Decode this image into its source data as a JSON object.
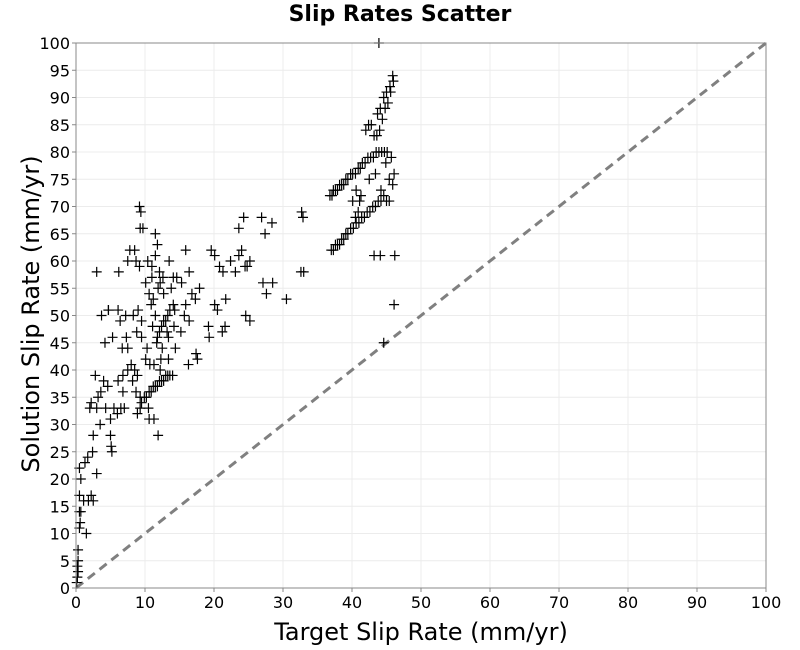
{
  "chart_data": {
    "type": "scatter",
    "title": "Slip Rates Scatter",
    "xlabel": "Target Slip Rate (mm/yr)",
    "ylabel": "Solution Slip Rate (mm/yr)",
    "xlim": [
      0,
      100
    ],
    "ylim": [
      0,
      100
    ],
    "xticks": [
      0,
      10,
      20,
      30,
      40,
      50,
      60,
      70,
      80,
      90,
      100
    ],
    "yticks": [
      0,
      5,
      10,
      15,
      20,
      25,
      30,
      35,
      40,
      45,
      50,
      55,
      60,
      65,
      70,
      75,
      80,
      85,
      90,
      95,
      100
    ],
    "grid": true,
    "marker": "+",
    "marker_color": "#000000",
    "reference_line": {
      "x": [
        0,
        100
      ],
      "y": [
        0,
        100
      ],
      "style": "dashed",
      "color": "#808080"
    },
    "points": [
      [
        0.1,
        1
      ],
      [
        0.2,
        2
      ],
      [
        0.3,
        3
      ],
      [
        0.2,
        4
      ],
      [
        0.3,
        5
      ],
      [
        0.3,
        7
      ],
      [
        0.5,
        11
      ],
      [
        0.6,
        12
      ],
      [
        0.5,
        14
      ],
      [
        0.7,
        14
      ],
      [
        0.5,
        17
      ],
      [
        0.7,
        20
      ],
      [
        0.5,
        22
      ],
      [
        1.1,
        16
      ],
      [
        1.5,
        10
      ],
      [
        1.8,
        16
      ],
      [
        2.2,
        17
      ],
      [
        2.5,
        16
      ],
      [
        1.3,
        23
      ],
      [
        1.7,
        24
      ],
      [
        2.4,
        25
      ],
      [
        3,
        21
      ],
      [
        2.5,
        28
      ],
      [
        2,
        33
      ],
      [
        2.2,
        34
      ],
      [
        3,
        33
      ],
      [
        3.5,
        30
      ],
      [
        3.2,
        35
      ],
      [
        3.6,
        36
      ],
      [
        2.8,
        39
      ],
      [
        4,
        38
      ],
      [
        4.6,
        37
      ],
      [
        4.3,
        33
      ],
      [
        5,
        31
      ],
      [
        5.5,
        33
      ],
      [
        5,
        28
      ],
      [
        6,
        32
      ],
      [
        6.5,
        33
      ],
      [
        7,
        33
      ],
      [
        6.8,
        36
      ],
      [
        5.2,
        25
      ],
      [
        5.1,
        26
      ],
      [
        6.1,
        38
      ],
      [
        6.8,
        39
      ],
      [
        7.5,
        40
      ],
      [
        8,
        41
      ],
      [
        8.5,
        40
      ],
      [
        8.2,
        38
      ],
      [
        8.9,
        39
      ],
      [
        4.2,
        45
      ],
      [
        5.3,
        46
      ],
      [
        6.7,
        44
      ],
      [
        7.3,
        46
      ],
      [
        7.5,
        44
      ],
      [
        6.4,
        49
      ],
      [
        7.2,
        50
      ],
      [
        8.3,
        50
      ],
      [
        9,
        51
      ],
      [
        9.5,
        49
      ],
      [
        4.7,
        51
      ],
      [
        6.1,
        51
      ],
      [
        4.7,
        51
      ],
      [
        3.7,
        50
      ],
      [
        3,
        58
      ],
      [
        6.2,
        58
      ],
      [
        7.5,
        60
      ],
      [
        7.8,
        62
      ],
      [
        8.5,
        62
      ],
      [
        8.7,
        60
      ],
      [
        9.2,
        59
      ],
      [
        9.3,
        66
      ],
      [
        9.2,
        70
      ],
      [
        9.4,
        69
      ],
      [
        9.7,
        66
      ],
      [
        10.1,
        56
      ],
      [
        10.4,
        60
      ],
      [
        11,
        59
      ],
      [
        11.5,
        61
      ],
      [
        11.8,
        63
      ],
      [
        11.5,
        65
      ],
      [
        11.9,
        55
      ],
      [
        12.2,
        56
      ],
      [
        12.1,
        58
      ],
      [
        12.6,
        57
      ],
      [
        11,
        57
      ],
      [
        10.6,
        54
      ],
      [
        10.9,
        52
      ],
      [
        11.2,
        53
      ],
      [
        11.5,
        50
      ],
      [
        11.1,
        48
      ],
      [
        8.8,
        47
      ],
      [
        9.5,
        46
      ],
      [
        10.3,
        44
      ],
      [
        10.1,
        42
      ],
      [
        11.3,
        41
      ],
      [
        11.7,
        45
      ],
      [
        11.8,
        46
      ],
      [
        12.1,
        47
      ],
      [
        12.4,
        48
      ],
      [
        12.7,
        49
      ],
      [
        13,
        49
      ],
      [
        13.3,
        50
      ],
      [
        13.6,
        51
      ],
      [
        14.1,
        52
      ],
      [
        14.3,
        51
      ],
      [
        12.5,
        44
      ],
      [
        12.3,
        42
      ],
      [
        13.2,
        47
      ],
      [
        13.4,
        46
      ],
      [
        14.2,
        48
      ],
      [
        12.7,
        54
      ],
      [
        13.8,
        55
      ],
      [
        14.1,
        57
      ],
      [
        15.3,
        56
      ],
      [
        15.9,
        62
      ],
      [
        14.6,
        57
      ],
      [
        13.5,
        60
      ],
      [
        16.4,
        58
      ],
      [
        16.8,
        54
      ],
      [
        17.3,
        53
      ],
      [
        17.9,
        55
      ],
      [
        15.7,
        50
      ],
      [
        15.2,
        47
      ],
      [
        16.3,
        41
      ],
      [
        17.4,
        43
      ],
      [
        17.6,
        42
      ],
      [
        15.9,
        52
      ],
      [
        16.4,
        49
      ],
      [
        8.9,
        32
      ],
      [
        9.3,
        33
      ],
      [
        9.5,
        34
      ],
      [
        9.9,
        35
      ],
      [
        10.2,
        35
      ],
      [
        10.6,
        36
      ],
      [
        10.9,
        36
      ],
      [
        11.2,
        37
      ],
      [
        11.5,
        37
      ],
      [
        11.8,
        37
      ],
      [
        12.1,
        38
      ],
      [
        12.4,
        38
      ],
      [
        12.7,
        38
      ],
      [
        13,
        39
      ],
      [
        13.3,
        39
      ],
      [
        13.6,
        39
      ],
      [
        14,
        39
      ],
      [
        10.6,
        31
      ],
      [
        11.3,
        31
      ],
      [
        11.9,
        28
      ],
      [
        9.3,
        35
      ],
      [
        8.7,
        36
      ],
      [
        12.2,
        40
      ],
      [
        13.4,
        42
      ],
      [
        10.7,
        41
      ],
      [
        14.4,
        44
      ],
      [
        10.5,
        33
      ],
      [
        19.6,
        62
      ],
      [
        20.1,
        61
      ],
      [
        20.8,
        59
      ],
      [
        21.3,
        58
      ],
      [
        21.7,
        53
      ],
      [
        20.5,
        51
      ],
      [
        20.1,
        52
      ],
      [
        21.6,
        48
      ],
      [
        21.2,
        47
      ],
      [
        19.2,
        48
      ],
      [
        19.3,
        46
      ],
      [
        22.4,
        60
      ],
      [
        23.1,
        58
      ],
      [
        23.6,
        66
      ],
      [
        24.3,
        68
      ],
      [
        24.5,
        59
      ],
      [
        24.8,
        59
      ],
      [
        25.2,
        60
      ],
      [
        23.6,
        61
      ],
      [
        24,
        62
      ],
      [
        24.6,
        50
      ],
      [
        25.2,
        49
      ],
      [
        26.9,
        68
      ],
      [
        27.4,
        65
      ],
      [
        28.4,
        67
      ],
      [
        27.1,
        56
      ],
      [
        28.5,
        56
      ],
      [
        27.6,
        54
      ],
      [
        30.5,
        53
      ],
      [
        32.7,
        69
      ],
      [
        32.9,
        68
      ],
      [
        32.6,
        58
      ],
      [
        33,
        58
      ],
      [
        36.8,
        72
      ],
      [
        37.1,
        72
      ],
      [
        37.3,
        73
      ],
      [
        37.6,
        73
      ],
      [
        37.9,
        73
      ],
      [
        38.2,
        74
      ],
      [
        38.5,
        74
      ],
      [
        38.8,
        74
      ],
      [
        39.1,
        75
      ],
      [
        39.4,
        75
      ],
      [
        39.8,
        76
      ],
      [
        40.1,
        76
      ],
      [
        40.5,
        76
      ],
      [
        40.9,
        77
      ],
      [
        41.2,
        77
      ],
      [
        41.5,
        78
      ],
      [
        41.9,
        78
      ],
      [
        42.3,
        79
      ],
      [
        42.7,
        79
      ],
      [
        43.1,
        79
      ],
      [
        43.5,
        80
      ],
      [
        43.9,
        80
      ],
      [
        44.3,
        80
      ],
      [
        44.7,
        80
      ],
      [
        45.1,
        80
      ],
      [
        37,
        62
      ],
      [
        37.3,
        62
      ],
      [
        37.6,
        63
      ],
      [
        37.9,
        63
      ],
      [
        38.2,
        63
      ],
      [
        38.5,
        64
      ],
      [
        38.8,
        64
      ],
      [
        39.1,
        65
      ],
      [
        39.4,
        65
      ],
      [
        39.8,
        66
      ],
      [
        40.2,
        66
      ],
      [
        40.6,
        67
      ],
      [
        41,
        67
      ],
      [
        41.4,
        68
      ],
      [
        41.8,
        68
      ],
      [
        42.2,
        69
      ],
      [
        42.6,
        69
      ],
      [
        43,
        70
      ],
      [
        43.4,
        70
      ],
      [
        43.8,
        71
      ],
      [
        44.2,
        71
      ],
      [
        44.6,
        72
      ],
      [
        45,
        71
      ],
      [
        45.4,
        71
      ],
      [
        40.1,
        71
      ],
      [
        41.1,
        71
      ],
      [
        42.5,
        75
      ],
      [
        43.4,
        76
      ],
      [
        44.9,
        78
      ],
      [
        45.7,
        79
      ],
      [
        45.9,
        74
      ],
      [
        45.4,
        75
      ],
      [
        46.1,
        76
      ],
      [
        44.2,
        73
      ],
      [
        42,
        84
      ],
      [
        42.4,
        85
      ],
      [
        42.8,
        85
      ],
      [
        43.2,
        83
      ],
      [
        43.6,
        83
      ],
      [
        44,
        84
      ],
      [
        44.4,
        86
      ],
      [
        44.8,
        88
      ],
      [
        45.2,
        89
      ],
      [
        45.6,
        91
      ],
      [
        46,
        93
      ],
      [
        43.7,
        87
      ],
      [
        44.1,
        88
      ],
      [
        44.6,
        90
      ],
      [
        45,
        91
      ],
      [
        45.5,
        92
      ],
      [
        45.9,
        94
      ],
      [
        43.9,
        100
      ],
      [
        43.2,
        61
      ],
      [
        44.1,
        61
      ],
      [
        44.6,
        45
      ],
      [
        46.2,
        61
      ],
      [
        46.1,
        52
      ],
      [
        40.6,
        73
      ],
      [
        41.3,
        72
      ],
      [
        40.5,
        68
      ],
      [
        40.9,
        69
      ]
    ]
  }
}
